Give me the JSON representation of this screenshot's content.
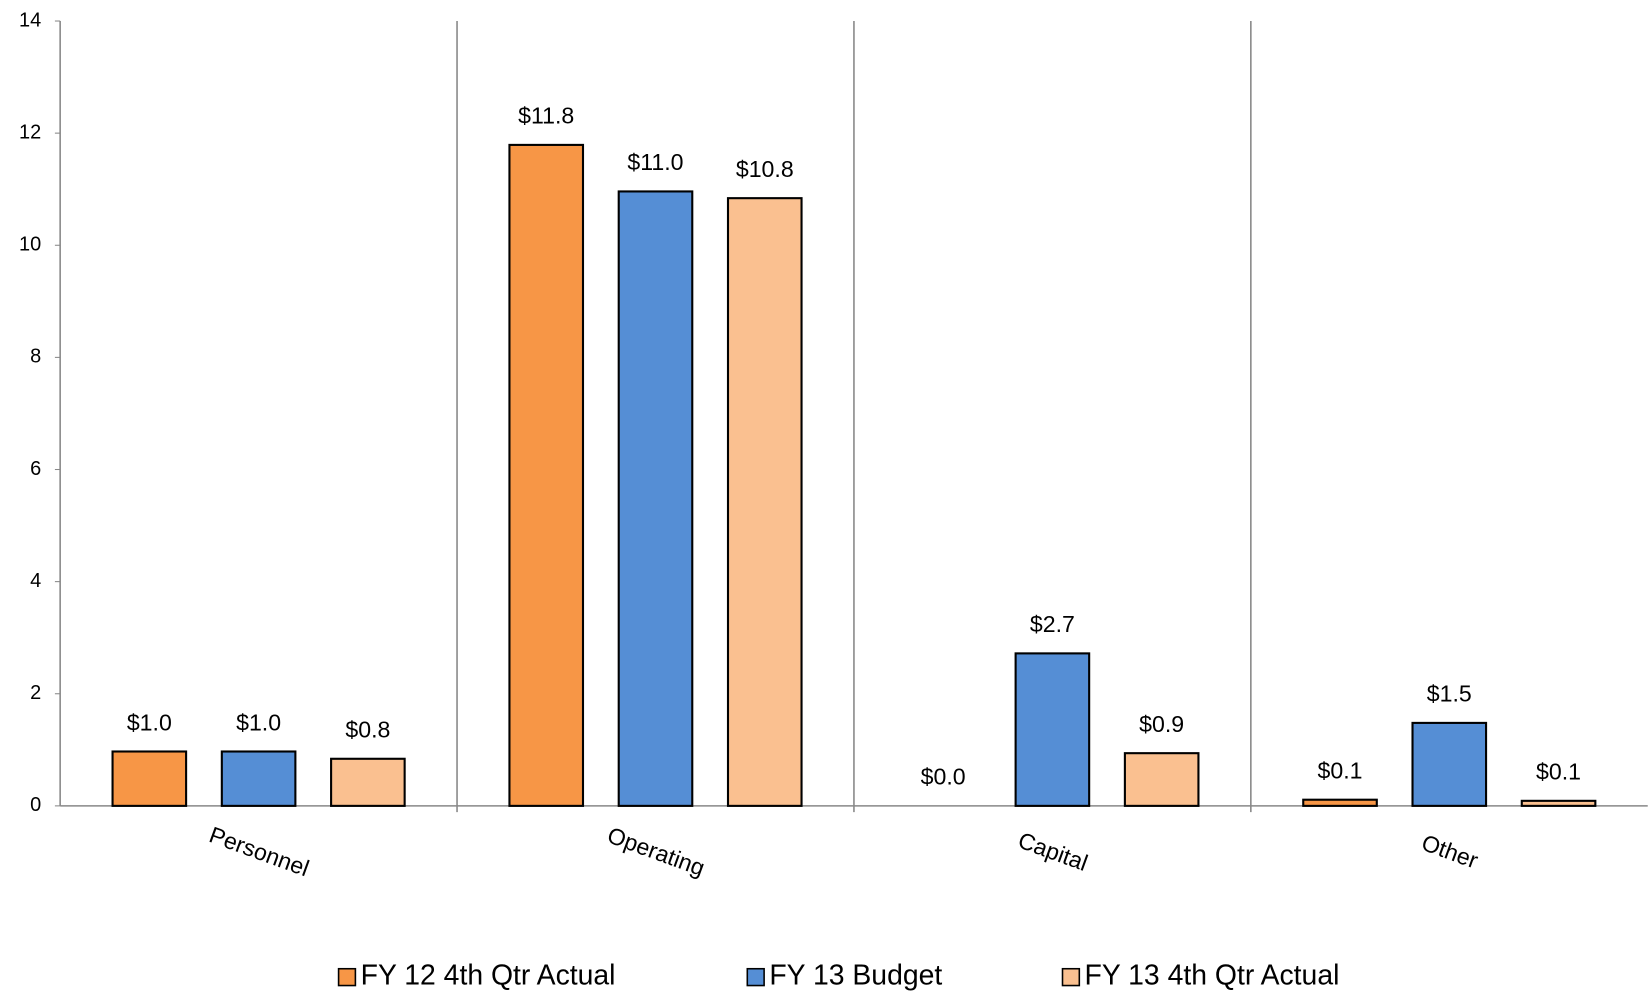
{
  "chart_data": {
    "type": "bar",
    "categories": [
      "Personnel",
      "Operating",
      "Capital",
      "Other"
    ],
    "series": [
      {
        "name": "FY 12 4th Qtr Actual",
        "color": "#f79646",
        "values": [
          0.97,
          11.79,
          0,
          0.11
        ],
        "value_labels": [
          "$1.0",
          "$11.8",
          "$0.0",
          "$0.1"
        ]
      },
      {
        "name": "FY 13 Budget",
        "color": "#558ed5",
        "values": [
          0.97,
          10.96,
          2.72,
          1.48
        ],
        "value_labels": [
          "$1.0",
          "$11.0",
          "$2.7",
          "$1.5"
        ]
      },
      {
        "name": "FY 13 4th Qtr Actual",
        "color": "#fac090",
        "values": [
          0.84,
          10.84,
          0.94,
          0.09
        ],
        "value_labels": [
          "$0.8",
          "$10.8",
          "$0.9",
          "$0.1"
        ]
      }
    ],
    "ylim": [
      0,
      14
    ],
    "yticks": [
      0,
      2,
      4,
      6,
      8,
      10,
      12,
      14
    ],
    "grid": false,
    "legend": "bottom"
  }
}
